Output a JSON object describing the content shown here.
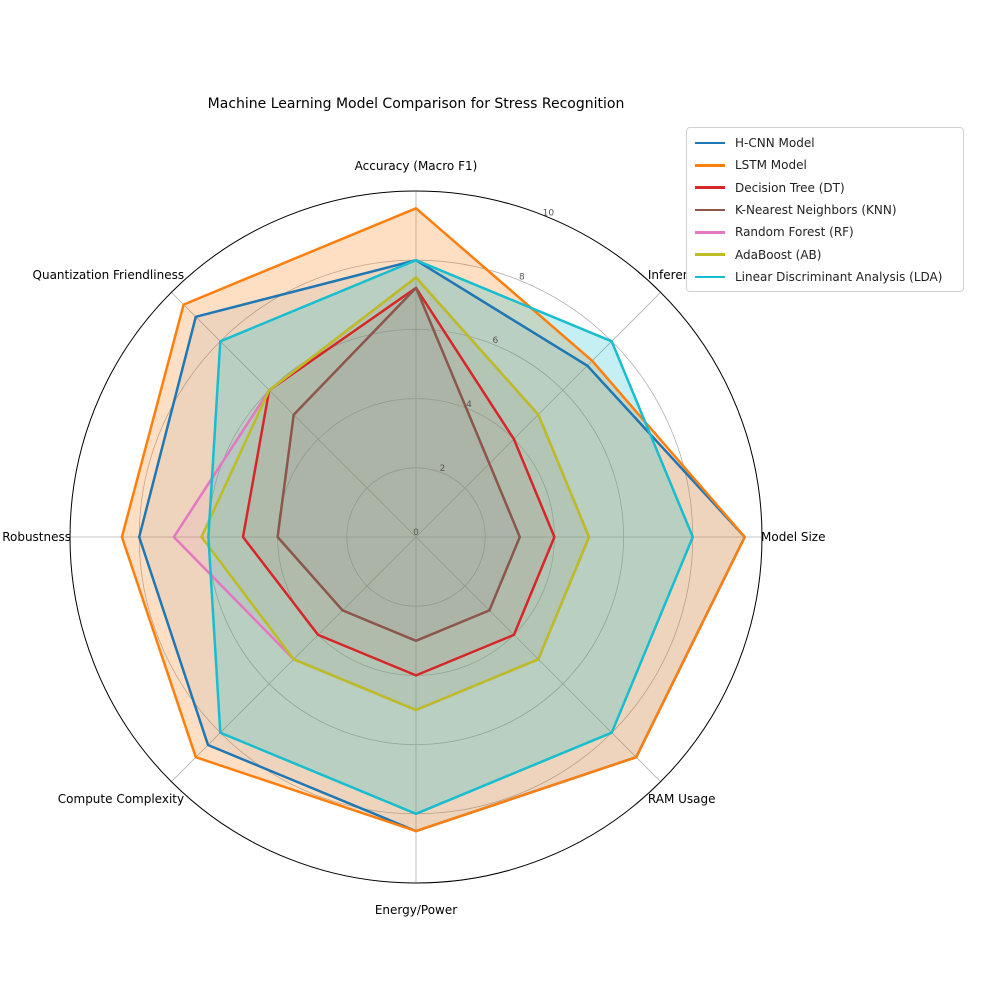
{
  "chart_data": {
    "type": "radar",
    "title": "Machine Learning Model Comparison for Stress Recognition",
    "axes": [
      "Accuracy (Macro F1)",
      "Inference Latency",
      "Model Size",
      "RAM Usage",
      "Energy/Power",
      "Compute Complexity",
      "Robustness",
      "Quantization Friendliness"
    ],
    "rlim": [
      0,
      10
    ],
    "rticks": [
      "0",
      "2",
      "4",
      "6",
      "8",
      "10"
    ],
    "grid": true,
    "legend_position": "top-right",
    "series": [
      {
        "name": "H-CNN Model",
        "color": "#1f77b4",
        "fill": false,
        "values": [
          8.0,
          7.0,
          9.5,
          9.0,
          8.5,
          8.5,
          8.0,
          9.0
        ]
      },
      {
        "name": "LSTM Model",
        "color": "#ff7f0e",
        "fill": true,
        "values": [
          9.5,
          7.2,
          9.5,
          9.0,
          8.5,
          9.0,
          8.5,
          9.5
        ]
      },
      {
        "name": "Decision Tree (DT)",
        "color": "#d62728",
        "fill": false,
        "values": [
          7.2,
          4.0,
          4.0,
          4.0,
          4.0,
          4.0,
          5.0,
          6.0
        ]
      },
      {
        "name": "K-Nearest Neighbors (KNN)",
        "color": "#8c564b",
        "fill": false,
        "values": [
          7.2,
          3.0,
          3.0,
          3.0,
          3.0,
          3.0,
          4.0,
          5.0
        ]
      },
      {
        "name": "Random Forest (RF)",
        "color": "#e377c2",
        "fill": false,
        "values": [
          7.5,
          5.0,
          5.0,
          5.0,
          5.0,
          5.0,
          7.0,
          6.0
        ]
      },
      {
        "name": "AdaBoost (AB)",
        "color": "#bcbd22",
        "fill": false,
        "values": [
          7.5,
          5.0,
          5.0,
          5.0,
          5.0,
          5.0,
          6.2,
          6.0
        ]
      },
      {
        "name": "Linear Discriminant Analysis (LDA)",
        "color": "#17becf",
        "fill": true,
        "values": [
          8.0,
          8.0,
          8.0,
          8.0,
          8.0,
          8.0,
          6.0,
          8.0
        ]
      }
    ]
  }
}
